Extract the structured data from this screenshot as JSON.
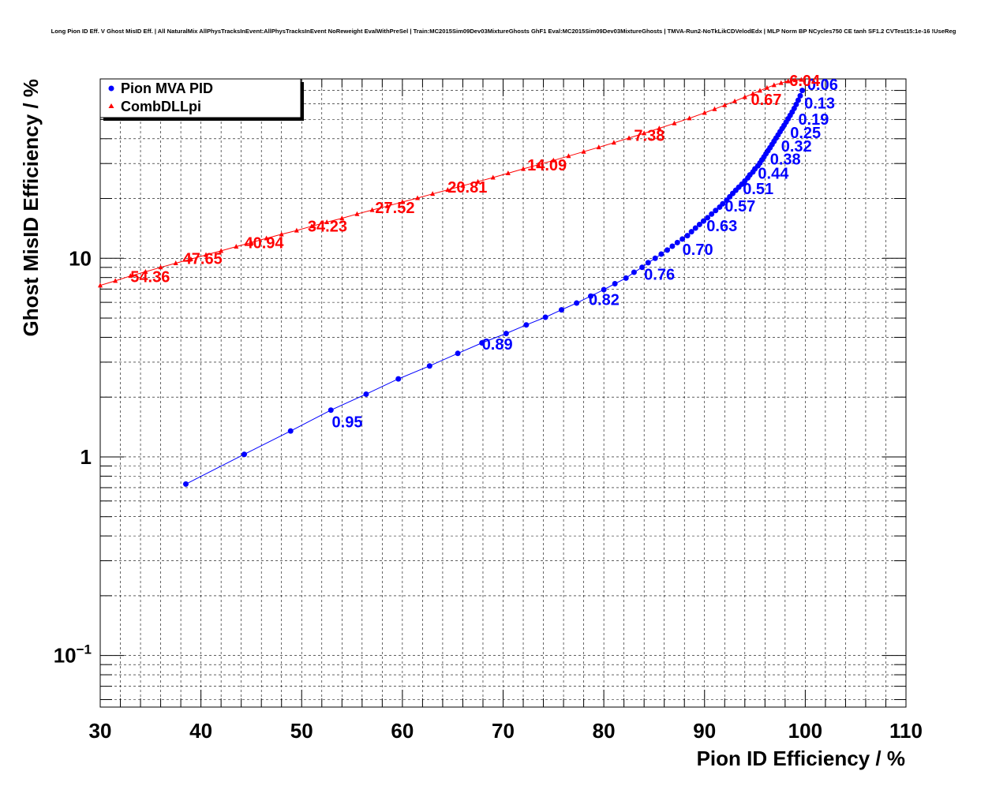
{
  "chart_data": {
    "type": "scatter",
    "title": "Long Pion ID Eff. V Ghost MisID Eff. | All NaturalMix AllPhysTracksInEvent:AllPhysTracksInEvent NoReweight EvalWithPreSel | Train:MC2015Sim09Dev03MixtureGhosts GhF1 Eval:MC2015Sim09Dev03MixtureGhosts | TMVA-Run2-NoTkLikCDVelodEdx | MLP Norm BP NCycles750 CE tanh SF1.2 CVTest15:1e-16 !UseReg",
    "xlabel": "Pion ID Efficiency / %",
    "ylabel": "Ghost MisID Efficiency / %",
    "xlim": [
      30,
      110
    ],
    "ylim": [
      0.055,
      80
    ],
    "yscale": "log",
    "grid": true,
    "legend_position": "top-left",
    "x_ticks": [
      "30",
      "40",
      "50",
      "60",
      "70",
      "80",
      "90",
      "100",
      "110"
    ],
    "y_ticks": [
      {
        "value": 0.1,
        "base": "10",
        "exp": "−1"
      },
      {
        "value": 1,
        "base": "1",
        "exp": ""
      },
      {
        "value": 10,
        "base": "10",
        "exp": ""
      }
    ],
    "series": [
      {
        "name": "Pion MVA PID",
        "color": "#0000ff",
        "marker": "circle",
        "x": [
          38.5,
          44.3,
          48.9,
          52.9,
          56.4,
          59.6,
          62.7,
          65.5,
          67.9,
          70.3,
          72.3,
          74.2,
          75.8,
          77.3,
          78.7,
          80.0,
          81.1,
          82.2,
          83.0,
          83.8,
          84.4,
          85.1,
          85.7,
          86.3,
          86.8,
          87.3,
          87.8,
          88.3,
          88.7,
          89.1,
          89.5,
          89.9,
          90.3,
          90.7,
          91.1,
          91.5,
          91.8,
          92.2,
          92.5,
          92.8,
          93.1,
          93.4,
          93.7,
          94.0,
          94.3,
          94.5,
          94.8,
          95.0,
          95.3,
          95.5,
          95.7,
          95.9,
          96.1,
          96.3,
          96.5,
          96.7,
          96.9,
          97.1,
          97.3,
          97.5,
          97.7,
          97.9,
          98.1,
          98.3,
          98.5,
          98.7,
          98.9,
          99.1,
          99.3,
          99.5,
          99.7
        ],
        "y": [
          0.73,
          1.03,
          1.35,
          1.72,
          2.07,
          2.47,
          2.87,
          3.32,
          3.75,
          4.18,
          4.62,
          5.05,
          5.5,
          5.95,
          6.45,
          6.95,
          7.45,
          7.95,
          8.5,
          9.0,
          9.5,
          10.0,
          10.5,
          11.0,
          11.5,
          12.0,
          12.5,
          13.0,
          13.6,
          14.2,
          14.8,
          15.4,
          16.0,
          16.7,
          17.4,
          18.1,
          18.8,
          19.6,
          20.4,
          21.2,
          22.0,
          22.8,
          23.6,
          24.5,
          25.4,
          26.3,
          27.2,
          28.2,
          29.2,
          30.2,
          31.3,
          32.4,
          33.6,
          34.8,
          36.0,
          37.4,
          38.8,
          40.3,
          41.8,
          43.4,
          45.0,
          46.7,
          48.5,
          50.4,
          52.4,
          54.5,
          56.8,
          59.5,
          62.5,
          65.8,
          70.0
        ],
        "annotations": [
          {
            "x": 53.0,
            "y": 1.5,
            "text": "0.95"
          },
          {
            "x": 67.9,
            "y": 3.7,
            "text": "0.89"
          },
          {
            "x": 78.5,
            "y": 6.2,
            "text": "0.82"
          },
          {
            "x": 84.0,
            "y": 8.3,
            "text": "0.76"
          },
          {
            "x": 87.8,
            "y": 11.1,
            "text": "0.70"
          },
          {
            "x": 90.2,
            "y": 14.6,
            "text": "0.63"
          },
          {
            "x": 92.0,
            "y": 18.3,
            "text": "0.57"
          },
          {
            "x": 93.8,
            "y": 22.4,
            "text": "0.51"
          },
          {
            "x": 95.3,
            "y": 26.8,
            "text": "0.44"
          },
          {
            "x": 96.5,
            "y": 31.6,
            "text": "0.38"
          },
          {
            "x": 97.6,
            "y": 36.8,
            "text": "0.32"
          },
          {
            "x": 98.5,
            "y": 43.0,
            "text": "0.25"
          },
          {
            "x": 99.3,
            "y": 50.2,
            "text": "0.19"
          },
          {
            "x": 99.9,
            "y": 60.5,
            "text": "0.13"
          },
          {
            "x": 100.2,
            "y": 75.0,
            "text": "0.06"
          }
        ]
      },
      {
        "name": "CombDLLpi",
        "color": "#ff0000",
        "marker": "triangle",
        "x": [
          30.0,
          31.5,
          33.0,
          34.5,
          36.0,
          37.5,
          39.0,
          40.5,
          42.0,
          43.5,
          45.0,
          46.5,
          48.0,
          49.5,
          51.0,
          52.5,
          54.0,
          55.5,
          57.0,
          58.5,
          60.0,
          61.5,
          63.0,
          64.5,
          66.0,
          67.5,
          69.0,
          70.5,
          72.0,
          73.5,
          75.0,
          76.5,
          78.0,
          79.5,
          81.0,
          82.5,
          84.0,
          85.5,
          87.0,
          88.5,
          90.0,
          91.0,
          92.0,
          93.0,
          94.0,
          94.8,
          95.5,
          96.2,
          96.9,
          97.6,
          98.3,
          99.0,
          99.6
        ],
        "y": [
          7.3,
          7.7,
          8.15,
          8.55,
          9.0,
          9.45,
          9.9,
          10.4,
          10.9,
          11.45,
          12.0,
          12.6,
          13.2,
          13.8,
          14.5,
          15.2,
          15.9,
          16.7,
          17.5,
          18.3,
          19.2,
          20.1,
          21.1,
          22.1,
          23.2,
          24.3,
          25.5,
          26.8,
          28.2,
          29.6,
          31.1,
          32.7,
          34.4,
          36.2,
          38.2,
          40.3,
          42.6,
          45.1,
          47.8,
          50.7,
          54.0,
          56.4,
          59.0,
          61.8,
          64.8,
          67.4,
          69.8,
          72.2,
          74.4,
          76.3,
          77.8,
          78.8,
          79.3
        ],
        "annotations": [
          {
            "x": 33.0,
            "y": 8.1,
            "text": "54.36"
          },
          {
            "x": 38.2,
            "y": 10.0,
            "text": "47.65"
          },
          {
            "x": 44.3,
            "y": 12.0,
            "text": "40.94"
          },
          {
            "x": 50.6,
            "y": 14.5,
            "text": "34.23"
          },
          {
            "x": 57.3,
            "y": 18.0,
            "text": "27.52"
          },
          {
            "x": 64.5,
            "y": 22.8,
            "text": "20.81"
          },
          {
            "x": 72.4,
            "y": 29.5,
            "text": "14.09"
          },
          {
            "x": 83.0,
            "y": 41.6,
            "text": "7.38"
          },
          {
            "x": 94.6,
            "y": 63.0,
            "text": "0.67"
          },
          {
            "x": 97.9,
            "y": 78.5,
            "text": "-6.04"
          }
        ]
      }
    ]
  }
}
